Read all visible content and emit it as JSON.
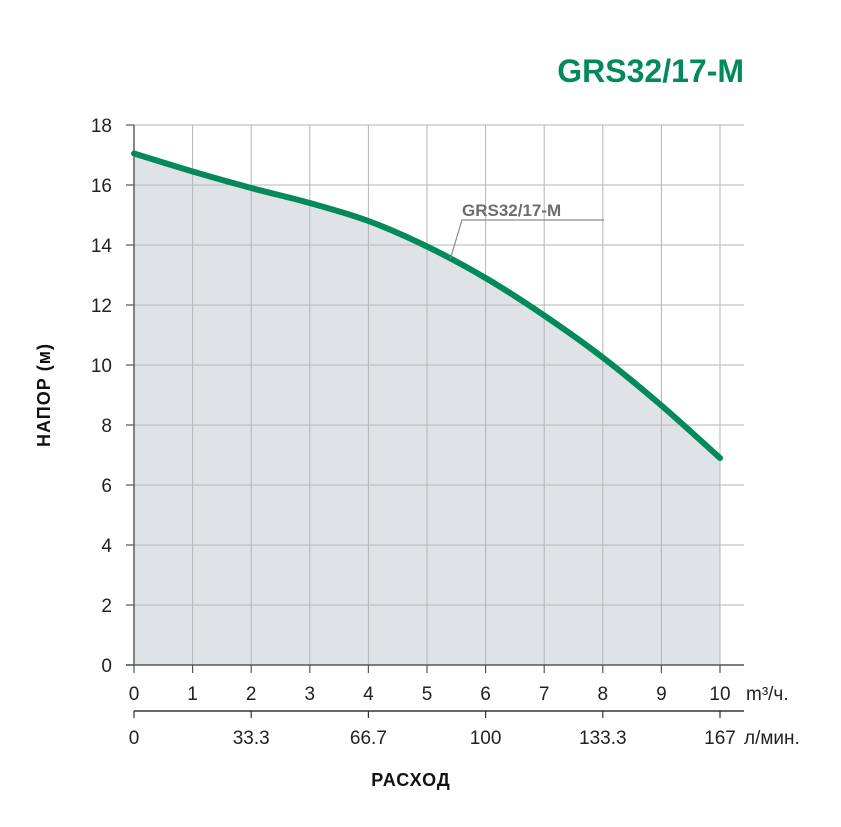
{
  "chart_data": {
    "type": "area",
    "title": "GRS32/17-M",
    "ylabel": "НАПОР (м)",
    "xlabel": "РАСХОД",
    "x_unit": "m³/ч.",
    "x2_unit": "л/мин.",
    "xlim": [
      0,
      10
    ],
    "ylim": [
      0,
      18
    ],
    "x_ticks": [
      0,
      1,
      2,
      3,
      4,
      5,
      6,
      7,
      8,
      9,
      10
    ],
    "x_tick_labels": [
      "0",
      "1",
      "2",
      "3",
      "4",
      "5",
      "6",
      "7",
      "8",
      "9",
      "10"
    ],
    "y_ticks": [
      0,
      2,
      4,
      6,
      8,
      10,
      12,
      14,
      16,
      18
    ],
    "y_tick_labels": [
      "0",
      "2",
      "4",
      "6",
      "8",
      "10",
      "12",
      "14",
      "16",
      "18"
    ],
    "x2_ticks": [
      0,
      2,
      4,
      6,
      8,
      10
    ],
    "x2_tick_labels": [
      "0",
      "33.3",
      "66.7",
      "100",
      "133.3",
      "167"
    ],
    "grid": true,
    "series": [
      {
        "name": "GRS32/17-M",
        "x": [
          0,
          1,
          2,
          3,
          4,
          5,
          6,
          7,
          8,
          9,
          10
        ],
        "y": [
          17.05,
          16.45,
          15.9,
          15.4,
          14.8,
          13.95,
          12.9,
          11.65,
          10.25,
          8.65,
          6.9
        ]
      }
    ],
    "colors": {
      "line": "#028a5a",
      "fill": "#dfe3e6",
      "title": "#028a5a",
      "grid": "#b5b5b5"
    }
  }
}
